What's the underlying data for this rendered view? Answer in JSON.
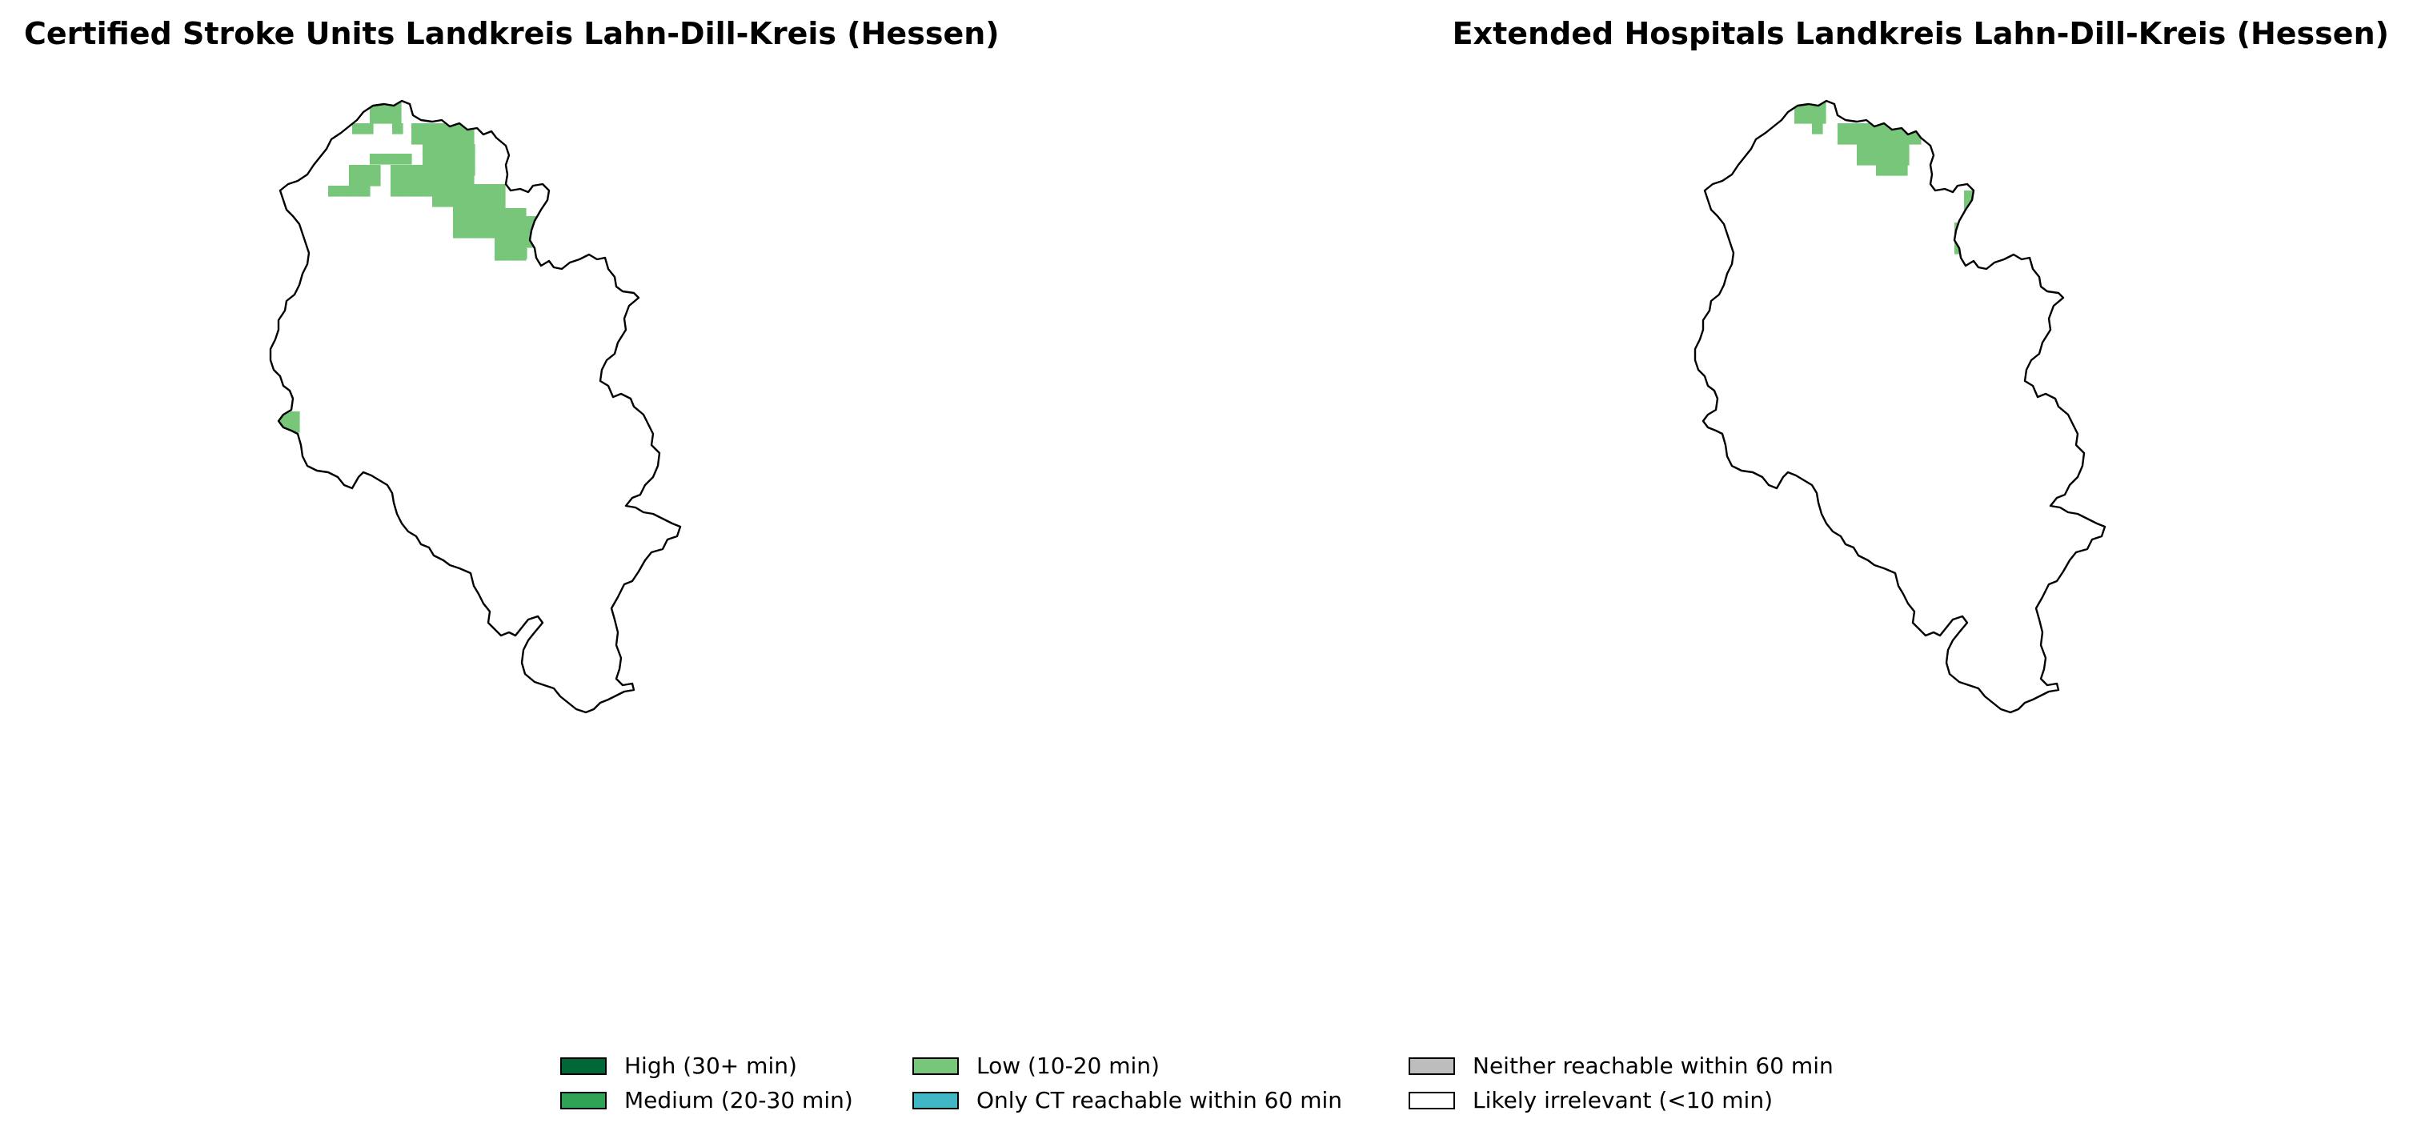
{
  "maps": [
    {
      "title": "Certified Stroke Units Landkreis Lahn-Dill-Kreis (Hessen)",
      "district": "Lahn-Dill-Kreis",
      "shaded_category": "Low (10-20 min)",
      "shaded_area": "northern part of district"
    },
    {
      "title": "Extended Hospitals Landkreis Lahn-Dill-Kreis (Hessen)",
      "district": "Lahn-Dill-Kreis",
      "shaded_category": "Low (10-20 min)",
      "shaded_area": "small northern strip"
    }
  ],
  "legend": {
    "items": [
      {
        "label": "High (30+ min)",
        "color": "#006837"
      },
      {
        "label": "Medium (20-30 min)",
        "color": "#31a354"
      },
      {
        "label": "Low (10-20 min)",
        "color": "#78c679"
      },
      {
        "label": "Only CT reachable within 60 min",
        "color": "#41b6c4"
      },
      {
        "label": "Neither reachable within 60 min",
        "color": "#bdbdbd"
      },
      {
        "label": "Likely irrelevant (<10 min)",
        "color": "#ffffff"
      }
    ]
  },
  "colors": {
    "outline": "#000000",
    "low": "#78c679"
  }
}
